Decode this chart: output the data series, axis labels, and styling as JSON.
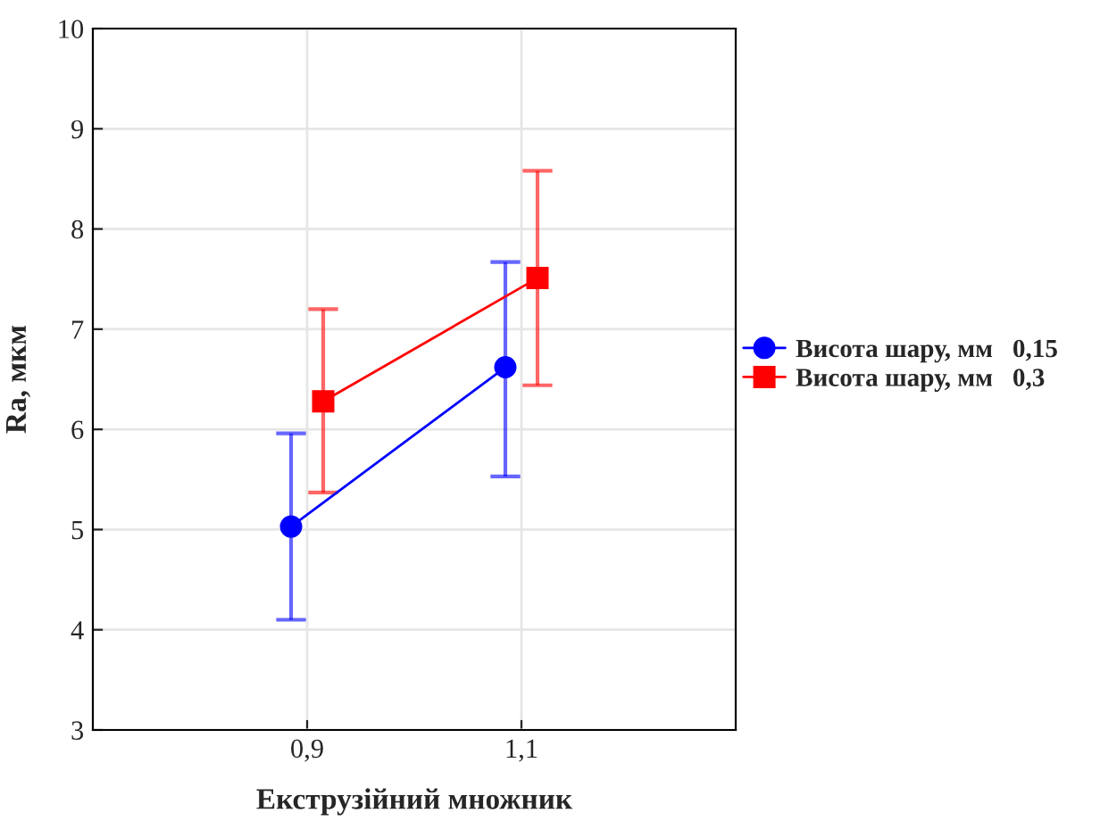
{
  "chart_data": {
    "type": "line",
    "xlabel": "Екструзійний множник",
    "ylabel": "Ra, мкм",
    "categories": [
      "0,9",
      "1,1"
    ],
    "series": [
      {
        "name": "Висота шару, мм   0,15",
        "color": "#0000ff",
        "marker": "circle",
        "values": [
          5.03,
          6.62
        ],
        "errors": [
          [
            4.1,
            5.96
          ],
          [
            5.53,
            7.67
          ]
        ]
      },
      {
        "name": "Висота шару, мм   0,3",
        "color": "#ff0000",
        "marker": "square",
        "values": [
          6.28,
          7.51
        ],
        "errors": [
          [
            5.37,
            7.2
          ],
          [
            6.44,
            8.58
          ]
        ]
      }
    ],
    "ylim": [
      3,
      10
    ],
    "yticks": [
      3,
      4,
      5,
      6,
      7,
      8,
      9,
      10
    ],
    "grid": true,
    "legend": "right"
  }
}
